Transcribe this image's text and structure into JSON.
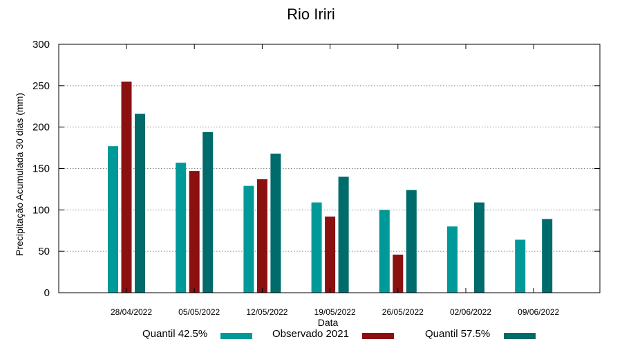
{
  "chart_data": {
    "type": "bar",
    "title": "Rio Iriri",
    "xlabel": "Data",
    "ylabel": "Precipitação Acumulada 30 dias (mm)",
    "ylim": [
      0,
      300
    ],
    "yticks": [
      0,
      50,
      100,
      150,
      200,
      250,
      300
    ],
    "grid": true,
    "legend_position": "bottom",
    "categories": [
      "28/04/2022",
      "05/05/2022",
      "12/05/2022",
      "19/05/2022",
      "26/05/2022",
      "02/06/2022",
      "09/06/2022"
    ],
    "series": [
      {
        "name": "Quantil 42.5%",
        "color": "#009999",
        "values": [
          177,
          157,
          129,
          109,
          100,
          80,
          64
        ]
      },
      {
        "name": "Observado 2021",
        "color": "#8b1010",
        "values": [
          255,
          147,
          137,
          92,
          46,
          null,
          null
        ]
      },
      {
        "name": "Quantil 57.5%",
        "color": "#006b6b",
        "values": [
          216,
          194,
          168,
          140,
          124,
          109,
          89
        ]
      }
    ]
  }
}
